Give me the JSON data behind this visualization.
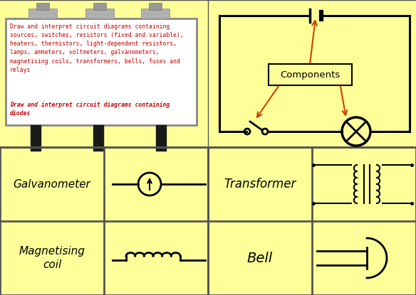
{
  "bg_color": "#FFFF99",
  "billboard_bg": "white",
  "billboard_border": "#888888",
  "text_color1": "#cc0000",
  "billboard_text1": "Draw and interpret circuit diagrams containing\nsources, switches, resistors (fixed and variable),\nheaters, thermistors, light-dependent resistors,\nlamps, ammeters, voltmeters, galvanometers,\nmagnetising coils, transformers, bells, fuses and\nrelays",
  "billboard_text2": "Draw and interpret circuit diagrams containing\ndiodes",
  "components_label": "Components",
  "divider_color": "#555555",
  "arrow_color": "#cc4400",
  "label_galvanometer": "Galvanometer",
  "label_magnetising": "Magnetising\ncoil",
  "label_transformer": "Transformer",
  "label_bell": "Bell"
}
